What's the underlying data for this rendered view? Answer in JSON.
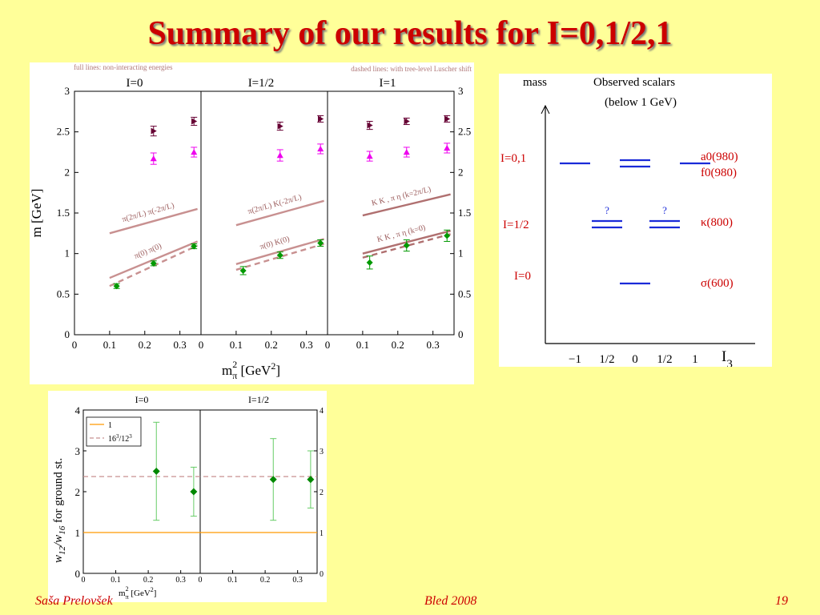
{
  "slide": {
    "title": "Summary of our results for I=0,1/2,1",
    "footer": {
      "author": "Saša Prelovšek",
      "event": "Bled 2008",
      "page": "19"
    },
    "colors": {
      "background": "#ffff99",
      "title": "#cc0000"
    }
  },
  "chart_data": [
    {
      "type": "scatter",
      "panels": [
        "I=0",
        "I=1/2",
        "I=1"
      ],
      "notes": [
        "full lines: non-interacting energies",
        "dashed lines: with tree-level Luscher shift"
      ],
      "xlabel": "m",
      "xlabel_sub": "π",
      "xlabel_sup": "2",
      "xlabel_unit": "[GeV",
      "xlabel_unit_sup": "2",
      "xlabel_close": "]",
      "ylabel": "m [GeV]",
      "xlim": [
        0,
        0.36
      ],
      "ylim": [
        0,
        3
      ],
      "xticks": [
        "0",
        "0.1",
        "0.2",
        "0.3"
      ],
      "yticks": [
        "0",
        "0.5",
        "1",
        "1.5",
        "2",
        "2.5",
        "3"
      ],
      "series": [
        {
          "marker": "diamond",
          "color": "#009900",
          "points": [
            {
              "panel": 0,
              "x": 0.12,
              "y": 0.6,
              "err": 0.03
            },
            {
              "panel": 0,
              "x": 0.225,
              "y": 0.88,
              "err": 0.03
            },
            {
              "panel": 0,
              "x": 0.34,
              "y": 1.09,
              "err": 0.03
            },
            {
              "panel": 1,
              "x": 0.12,
              "y": 0.79,
              "err": 0.05
            },
            {
              "panel": 1,
              "x": 0.225,
              "y": 0.98,
              "err": 0.04
            },
            {
              "panel": 1,
              "x": 0.34,
              "y": 1.13,
              "err": 0.04
            },
            {
              "panel": 2,
              "x": 0.12,
              "y": 0.89,
              "err": 0.08
            },
            {
              "panel": 2,
              "x": 0.225,
              "y": 1.1,
              "err": 0.07
            },
            {
              "panel": 2,
              "x": 0.34,
              "y": 1.22,
              "err": 0.07
            }
          ]
        },
        {
          "marker": "triangle",
          "color": "#ee00ee",
          "points": [
            {
              "panel": 0,
              "x": 0.225,
              "y": 2.17,
              "err": 0.07
            },
            {
              "panel": 0,
              "x": 0.34,
              "y": 2.25,
              "err": 0.06
            },
            {
              "panel": 1,
              "x": 0.225,
              "y": 2.21,
              "err": 0.07
            },
            {
              "panel": 1,
              "x": 0.34,
              "y": 2.29,
              "err": 0.06
            },
            {
              "panel": 2,
              "x": 0.12,
              "y": 2.2,
              "err": 0.06
            },
            {
              "panel": 2,
              "x": 0.225,
              "y": 2.25,
              "err": 0.06
            },
            {
              "panel": 2,
              "x": 0.34,
              "y": 2.3,
              "err": 0.06
            }
          ]
        },
        {
          "marker": "triangle-right",
          "color": "#660033",
          "points": [
            {
              "panel": 0,
              "x": 0.225,
              "y": 2.51,
              "err": 0.06
            },
            {
              "panel": 0,
              "x": 0.34,
              "y": 2.63,
              "err": 0.05
            },
            {
              "panel": 1,
              "x": 0.225,
              "y": 2.57,
              "err": 0.05
            },
            {
              "panel": 1,
              "x": 0.34,
              "y": 2.66,
              "err": 0.04
            },
            {
              "panel": 2,
              "x": 0.12,
              "y": 2.58,
              "err": 0.05
            },
            {
              "panel": 2,
              "x": 0.225,
              "y": 2.63,
              "err": 0.04
            },
            {
              "panel": 2,
              "x": 0.34,
              "y": 2.66,
              "err": 0.04
            }
          ]
        }
      ],
      "curves": [
        {
          "panel": 0,
          "style": "solid",
          "color": "#c89090",
          "x": [
            0.1,
            0.35
          ],
          "y": [
            1.25,
            1.55
          ],
          "label": "π(2π/L) π(-2π/L)"
        },
        {
          "panel": 0,
          "style": "solid",
          "color": "#c89090",
          "x": [
            0.1,
            0.35
          ],
          "y": [
            0.7,
            1.15
          ],
          "label": "π(0) π(0)"
        },
        {
          "panel": 0,
          "style": "dashed",
          "color": "#c89090",
          "x": [
            0.1,
            0.35
          ],
          "y": [
            0.6,
            1.1
          ],
          "label": ""
        },
        {
          "panel": 1,
          "style": "solid",
          "color": "#c89090",
          "x": [
            0.1,
            0.35
          ],
          "y": [
            1.35,
            1.65
          ],
          "label": "π(2π/L) K(-2π/L)"
        },
        {
          "panel": 1,
          "style": "solid",
          "color": "#c89090",
          "x": [
            0.1,
            0.35
          ],
          "y": [
            0.87,
            1.18
          ],
          "label": "π(0) K(0)"
        },
        {
          "panel": 1,
          "style": "dashed",
          "color": "#c89090",
          "x": [
            0.1,
            0.35
          ],
          "y": [
            0.8,
            1.12
          ],
          "label": ""
        },
        {
          "panel": 2,
          "style": "solid",
          "color": "#b07070",
          "x": [
            0.1,
            0.35
          ],
          "y": [
            1.47,
            1.73
          ],
          "label": "K K , π η   (k=2π/L)"
        },
        {
          "panel": 2,
          "style": "solid",
          "color": "#b07070",
          "x": [
            0.1,
            0.35
          ],
          "y": [
            1.0,
            1.28
          ],
          "label": "K K , π η   (k=0)"
        },
        {
          "panel": 2,
          "style": "dashed",
          "color": "#b07070",
          "x": [
            0.1,
            0.35
          ],
          "y": [
            0.95,
            1.24
          ],
          "label": ""
        }
      ]
    },
    {
      "type": "diagram",
      "ylabel": "mass",
      "title_line1": "Observed scalars",
      "title_line2": "(below 1 GeV)",
      "xlabel": "I",
      "xlabel_sub": "3",
      "xticks": [
        "−1",
        "1/2",
        "0",
        "1/2",
        "1"
      ],
      "levels": [
        {
          "name": "I=0,1",
          "states": [
            "a0(980)",
            "f0(980)"
          ],
          "bars": [
            [
              0,
              1
            ],
            [
              2,
              2
            ],
            [
              4,
              1
            ]
          ]
        },
        {
          "name": "I=1/2",
          "states": [
            "κ(800)"
          ],
          "bars": [
            [
              1,
              2
            ],
            [
              3,
              2
            ]
          ],
          "marks": [
            "?",
            "?"
          ]
        },
        {
          "name": "I=0",
          "states": [
            "σ(600)"
          ],
          "bars": [
            [
              2,
              1
            ]
          ]
        }
      ],
      "bar_color": "#1a2ad8",
      "label_color": "#cc0000"
    },
    {
      "type": "scatter",
      "panels": [
        "I=0",
        "I=1/2"
      ],
      "ylabel": "w12/w16   for ground st.",
      "ylabel_parts": [
        "w",
        "12",
        "/w",
        "16",
        "for ground st."
      ],
      "xlabel": "m",
      "xlabel_sub": "π",
      "xlabel_sup": "2",
      "xlabel_unit": "[GeV",
      "xlabel_unit_sup": "2",
      "xlabel_close": "]",
      "xlim": [
        0,
        0.36
      ],
      "ylim": [
        0,
        4
      ],
      "xticks": [
        "0",
        "0.1",
        "0.2",
        "0.3"
      ],
      "yticks": [
        "0",
        "1",
        "2",
        "3",
        "4"
      ],
      "legend": {
        "entries": [
          {
            "label": "1",
            "color": "#ff9900",
            "style": "solid"
          },
          {
            "label": "16",
            "sup1": "3",
            "mid": "/12",
            "sup2": "3",
            "color": "#c89090",
            "style": "dashed"
          }
        ]
      },
      "ref_lines": [
        {
          "y": 1,
          "color": "#ff9900",
          "style": "solid"
        },
        {
          "y": 2.37,
          "color": "#c89090",
          "style": "dashed"
        }
      ],
      "points": [
        {
          "panel": 0,
          "x": 0.225,
          "y": 2.5,
          "low": 1.3,
          "high": 3.7
        },
        {
          "panel": 0,
          "x": 0.34,
          "y": 2.0,
          "low": 1.4,
          "high": 2.6
        },
        {
          "panel": 1,
          "x": 0.225,
          "y": 2.3,
          "low": 1.3,
          "high": 3.3
        },
        {
          "panel": 1,
          "x": 0.34,
          "y": 2.3,
          "low": 1.6,
          "high": 3.0
        }
      ],
      "marker_color": "#008800",
      "err_color": "#66cc66"
    }
  ]
}
